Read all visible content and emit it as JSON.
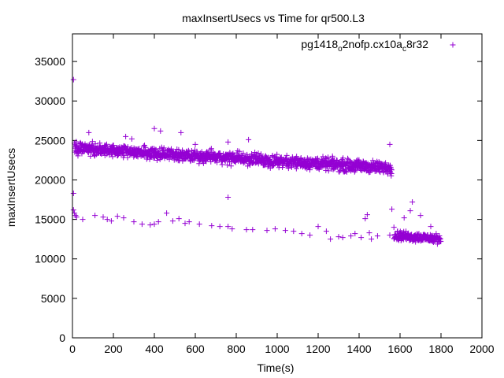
{
  "chart_data": {
    "type": "scatter",
    "title": "maxInsertUsecs vs Time for qr500.L3",
    "xlabel": "Time(s)",
    "ylabel": "maxInsertUsecs",
    "xlim": [
      0,
      2000
    ],
    "ylim": [
      0,
      38500
    ],
    "x_ticks": [
      0,
      200,
      400,
      600,
      800,
      1000,
      1200,
      1400,
      1600,
      1800,
      2000
    ],
    "y_ticks": [
      0,
      5000,
      10000,
      15000,
      20000,
      25000,
      30000,
      35000
    ],
    "grid": false,
    "legend_position": "top-right",
    "marker": "+",
    "series_color": "#9400d3",
    "series": [
      {
        "name": "pg1418_o2nofp.cx10a_c8r32",
        "name_parts": {
          "a": "pg1418",
          "b": "o",
          "c": "2nofp.cx10a",
          "d": "c",
          "e": "8r32"
        },
        "bands": [
          {
            "label": "upper band",
            "x_start": 10,
            "x_end": 1560,
            "y_start": 24000,
            "y_end": 21500,
            "spread": 650
          },
          {
            "label": "late lower band",
            "x_start": 1570,
            "x_end": 1800,
            "y_start": 13000,
            "y_end": 12500,
            "spread": 500
          }
        ],
        "points": [
          [
            5,
            32700
          ],
          [
            5,
            18300
          ],
          [
            5,
            16200
          ],
          [
            10,
            15800
          ],
          [
            15,
            15500
          ],
          [
            20,
            15300
          ],
          [
            50,
            15000
          ],
          [
            110,
            15500
          ],
          [
            150,
            15300
          ],
          [
            170,
            15000
          ],
          [
            190,
            14800
          ],
          [
            220,
            15400
          ],
          [
            250,
            15200
          ],
          [
            300,
            14700
          ],
          [
            340,
            14400
          ],
          [
            380,
            14300
          ],
          [
            400,
            14400
          ],
          [
            420,
            14700
          ],
          [
            460,
            15800
          ],
          [
            490,
            14800
          ],
          [
            520,
            15100
          ],
          [
            550,
            14500
          ],
          [
            570,
            14700
          ],
          [
            620,
            14400
          ],
          [
            680,
            14200
          ],
          [
            720,
            14100
          ],
          [
            760,
            17800
          ],
          [
            760,
            14100
          ],
          [
            780,
            13800
          ],
          [
            850,
            13700
          ],
          [
            880,
            13700
          ],
          [
            950,
            13600
          ],
          [
            990,
            13800
          ],
          [
            1040,
            13600
          ],
          [
            1080,
            13500
          ],
          [
            1120,
            13200
          ],
          [
            1160,
            13000
          ],
          [
            1200,
            14100
          ],
          [
            1240,
            13500
          ],
          [
            1260,
            12500
          ],
          [
            1300,
            12800
          ],
          [
            1320,
            12700
          ],
          [
            1360,
            12900
          ],
          [
            1380,
            13200
          ],
          [
            1410,
            12700
          ],
          [
            1430,
            15100
          ],
          [
            1440,
            15600
          ],
          [
            1450,
            13300
          ],
          [
            1460,
            12500
          ],
          [
            1490,
            12900
          ],
          [
            1550,
            13000
          ],
          [
            1560,
            16300
          ],
          [
            1570,
            14000
          ],
          [
            1580,
            12900
          ],
          [
            1590,
            12500
          ],
          [
            1620,
            15200
          ],
          [
            1660,
            17200
          ],
          [
            1650,
            16100
          ],
          [
            1700,
            15500
          ],
          [
            1750,
            14100
          ],
          [
            400,
            26500
          ],
          [
            430,
            26200
          ],
          [
            530,
            26000
          ],
          [
            80,
            26000
          ],
          [
            260,
            25500
          ],
          [
            290,
            25200
          ],
          [
            860,
            25100
          ],
          [
            1550,
            24500
          ],
          [
            760,
            24800
          ],
          [
            600,
            24500
          ]
        ]
      }
    ]
  }
}
